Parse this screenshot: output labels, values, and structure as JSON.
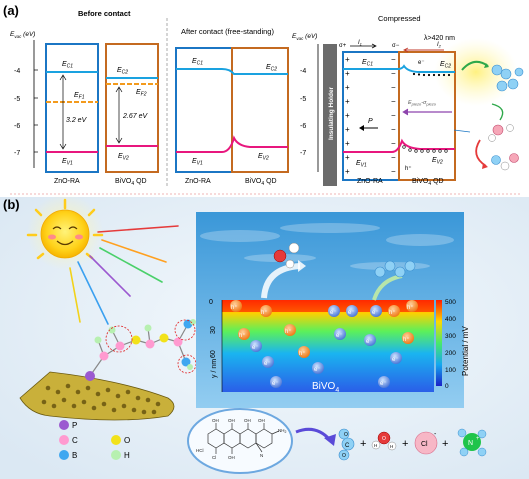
{
  "panel_a": {
    "label": "(a)",
    "before": {
      "title": "Before contact",
      "axis": "E",
      "axis_sub": "vac",
      "axis_unit": " (eV)",
      "ticks": [
        "-4",
        "-5",
        "-6",
        "-7"
      ],
      "ec1": "E",
      "ec1_sub": "C1",
      "ef1": "E",
      "ef1_sub": "F1",
      "ev1": "E",
      "ev1_sub": "V1",
      "gap1": "3.2 eV",
      "ec2": "E",
      "ec2_sub": "C2",
      "ef2": "E",
      "ef2_sub": "F2",
      "ev2": "E",
      "ev2_sub": "V2",
      "gap2": "2.67 eV",
      "label_left": "ZnO-RA",
      "label_right": "BiVO",
      "label_right_sub": "4",
      "label_right_tail": " QD"
    },
    "after": {
      "title": "After contact (free-standing)",
      "ec1": "E",
      "ec1_sub": "C1",
      "ec2": "E",
      "ec2_sub": "C2",
      "ev1": "E",
      "ev1_sub": "V1",
      "ev2": "E",
      "ev2_sub": "V2",
      "label_left": "ZnO-RA",
      "label_right": "BiVO",
      "label_right_sub": "4",
      "label_right_tail": " QD"
    },
    "compressed": {
      "title": "Compressed",
      "axis": "E",
      "axis_sub": "vac",
      "axis_unit": " (eV)",
      "ticks": [
        "-4",
        "-5",
        "-6",
        "-7"
      ],
      "wavelength": "λ>420 nm",
      "holder": "Insulating Holder",
      "sigma_plus": "σ+",
      "sigma_minus": "σ−",
      "i1": "I",
      "i1_sub": "1",
      "i2": "I",
      "i2_sub": "2",
      "ec1": "E",
      "ec1_sub": "C1",
      "ec2": "E",
      "ec2_sub": "C2",
      "ev1": "E",
      "ev1_sub": "V1",
      "ev2": "E",
      "ev2_sub": "V2",
      "p_vec": "P",
      "field": "E",
      "field_sub": "piezo",
      "field_mid": "-σ",
      "field_mid_sub": "piezo",
      "e_minus": "e⁻",
      "h_plus": "h⁺",
      "label_left": "ZnO-RA",
      "label_right": "BiVO",
      "label_right_sub": "4",
      "label_right_tail": " QD"
    }
  },
  "panel_b": {
    "label": "(b)",
    "legend": [
      {
        "symbol": "P",
        "color": "#9b59d0"
      },
      {
        "symbol": "O",
        "color": "#f2e21a"
      },
      {
        "symbol": "C",
        "color": "#ff9ad0"
      },
      {
        "symbol": "H",
        "color": "#b7f0b0"
      },
      {
        "symbol": "B",
        "color": "#3fa7f0"
      }
    ],
    "colorbar_title": "Potential / mV",
    "colorbar_ticks": [
      "500",
      "400",
      "300",
      "200",
      "100",
      "0"
    ],
    "y_axis_label": "y / nm",
    "y_ticks": [
      "0",
      "30",
      "60"
    ],
    "crystal": "BiVO",
    "crystal_sub": "4",
    "holes": [
      "h⁺",
      "h⁺",
      "h⁺",
      "h⁺",
      "h⁺",
      "h⁺",
      "h⁺",
      "h⁺"
    ],
    "electrons": [
      "e⁻",
      "e⁻",
      "e⁻",
      "e⁻",
      "e⁻",
      "e⁻",
      "e⁻",
      "e⁻",
      "e⁻",
      "e⁻",
      "e⁻"
    ],
    "tc_labels": {
      "hcl": "HCl",
      "nh2": "NH",
      "nh2_sub": "2",
      "oh": "OH",
      "cl": "Cl",
      "n": "N"
    },
    "products": [
      {
        "label": "C",
        "sub": "O"
      },
      {
        "label": "H",
        "sub": "O"
      },
      {
        "label": "Cl",
        "charge": "-"
      },
      {
        "label": "N",
        "charge": "+"
      }
    ],
    "plus": "+"
  }
}
